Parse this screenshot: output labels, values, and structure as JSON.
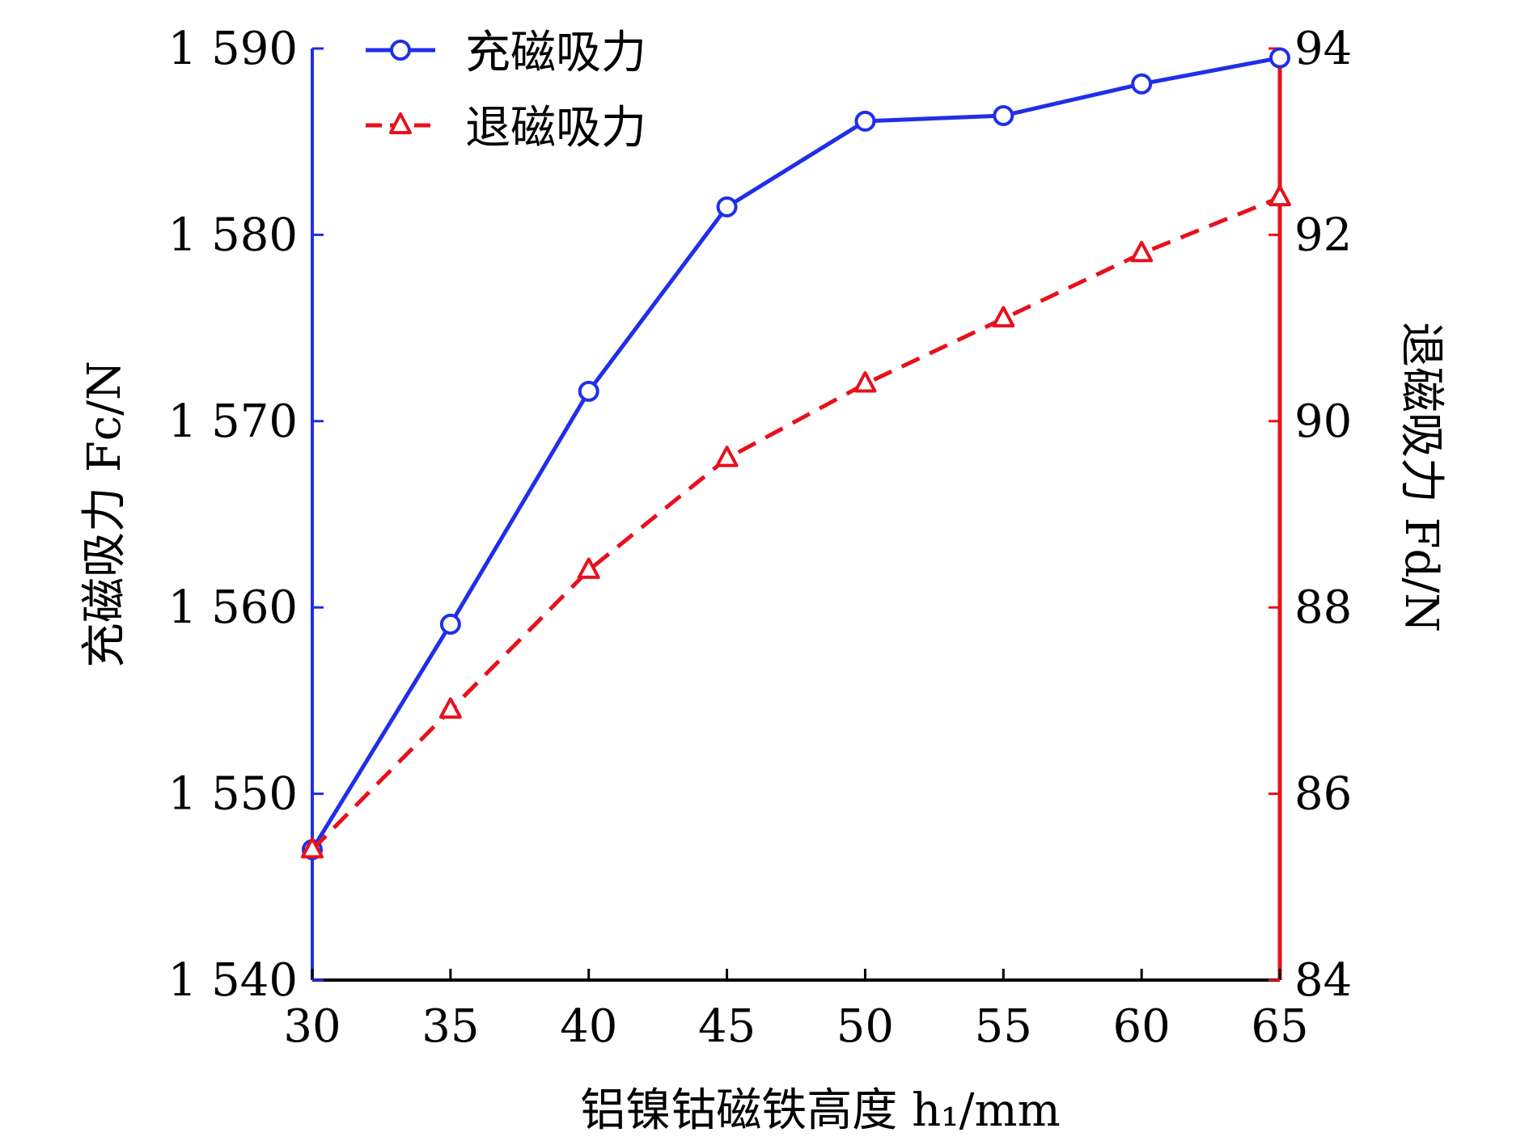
{
  "chart_data": {
    "type": "line",
    "x": [
      30,
      35,
      40,
      45,
      50,
      55,
      60,
      65
    ],
    "x_ticks": [
      "30",
      "35",
      "40",
      "45",
      "50",
      "55",
      "60",
      "65"
    ],
    "xlabel": "铝镍钴磁铁高度 h₁/mm",
    "xlim": [
      30,
      65
    ],
    "ylabel_left": "充磁吸力 Fc/N",
    "ylabel_right": "退磁吸力 Fd/N",
    "ylim_left": [
      1540,
      1590
    ],
    "ylim_right": [
      84,
      94
    ],
    "y_ticks_left": [
      "1 540",
      "1 550",
      "1 560",
      "1 570",
      "1 580",
      "1 590"
    ],
    "y_ticks_right": [
      "84",
      "86",
      "88",
      "90",
      "92",
      "94"
    ],
    "grid": false,
    "legend_position": "top-left",
    "series": [
      {
        "name": "充磁吸力",
        "axis": "left",
        "color": "#1f2fe8",
        "marker": "circle",
        "line_style": "solid",
        "values": [
          1547.0,
          1559.1,
          1571.6,
          1581.5,
          1586.1,
          1586.4,
          1588.1,
          1589.5
        ]
      },
      {
        "name": "退磁吸力",
        "axis": "right",
        "color": "#e8101c",
        "marker": "triangle",
        "line_style": "dashed",
        "values": [
          85.4,
          86.9,
          88.4,
          89.6,
          90.4,
          91.1,
          91.8,
          92.4
        ]
      }
    ]
  }
}
